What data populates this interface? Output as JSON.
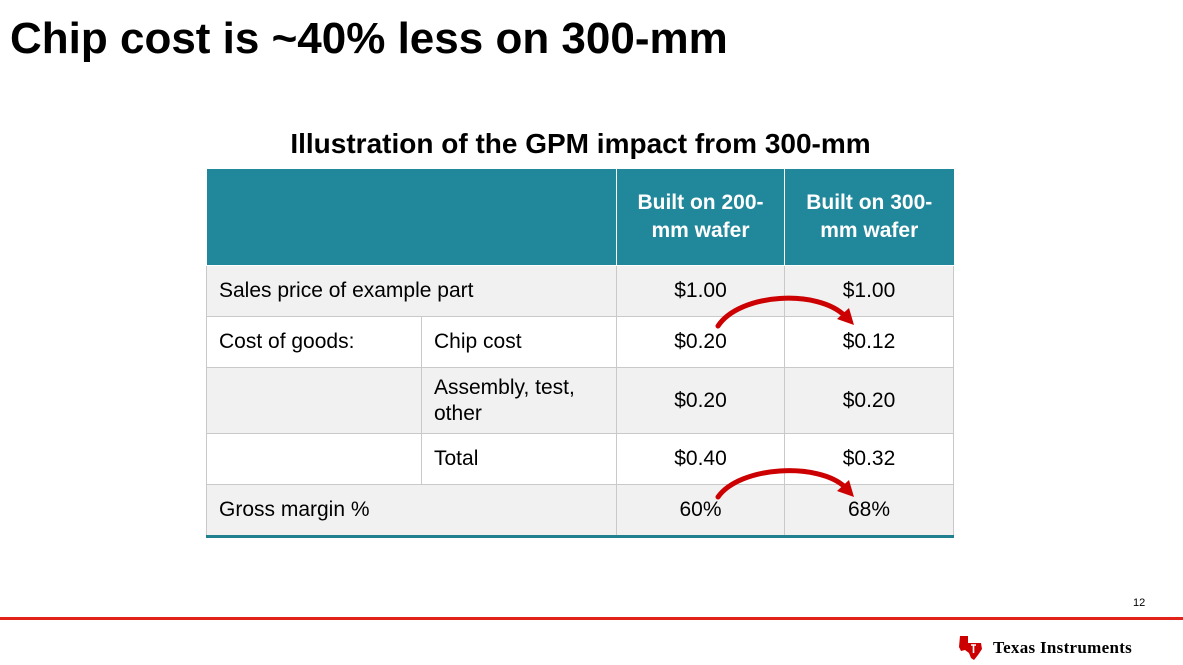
{
  "slide": {
    "title": "Chip cost is ~40% less on 300-mm",
    "page_number": "12"
  },
  "table": {
    "title": "Illustration of the GPM impact from 300-mm",
    "headers": {
      "col_200": "Built on 200-mm wafer",
      "col_300": "Built on 300-mm wafer"
    },
    "rows": {
      "sales_price": {
        "label": "Sales price of example part",
        "v200": "$1.00",
        "v300": "$1.00"
      },
      "chip_cost": {
        "label": "Cost of goods:",
        "sublabel": "Chip cost",
        "v200": "$0.20",
        "v300": "$0.12"
      },
      "assembly": {
        "label": "",
        "sublabel": "Assembly, test, other",
        "v200": "$0.20",
        "v300": "$0.20"
      },
      "total": {
        "label": "",
        "sublabel": "Total",
        "v200": "$0.40",
        "v300": "$0.32"
      },
      "gross_margin": {
        "label": "Gross margin %",
        "v200": "60%",
        "v300": "68%"
      }
    }
  },
  "logo": {
    "text": "Texas Instruments",
    "icon": "texas-state-logo-icon"
  },
  "colors": {
    "header_bg": "#21879a",
    "arrow": "#cc0000",
    "footer_rule": "#e2231a",
    "shaded_row": "#f1f1f1"
  }
}
